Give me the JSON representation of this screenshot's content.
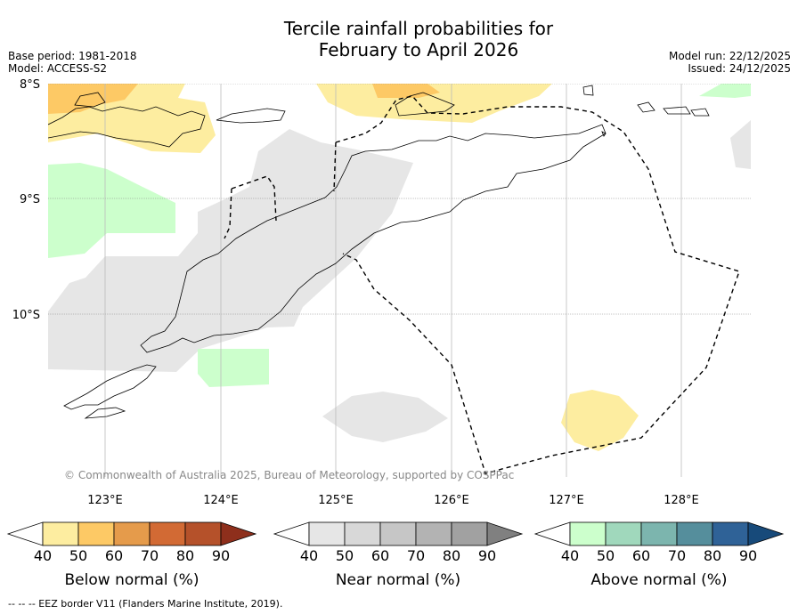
{
  "title_line1": "Tercile rainfall probabilities for",
  "title_line2": "February to April 2026",
  "base_period": "Base period: 1981-2018",
  "model": "Model: ACCESS-S2",
  "model_run": "Model run: 22/12/2025",
  "issued": "Issued: 24/12/2025",
  "lat_labels": [
    "8°S",
    "9°S",
    "10°S"
  ],
  "lon_labels": [
    "123°E",
    "124°E",
    "125°E",
    "126°E",
    "127°E",
    "128°E"
  ],
  "copyright": "© Commonwealth of Australia 2025, Bureau of Meteorology, supported by COSPPac",
  "colorbars": [
    {
      "label": "Below normal (%)",
      "ticks": [
        "40",
        "50",
        "60",
        "70",
        "80",
        "90"
      ],
      "colors": [
        "#ffffff",
        "#fdeda0",
        "#fdc965",
        "#e59b4b",
        "#d26a34",
        "#b5512a",
        "#8e2f1c"
      ]
    },
    {
      "label": "Near normal (%)",
      "ticks": [
        "40",
        "50",
        "60",
        "70",
        "80",
        "90"
      ],
      "colors": [
        "#ffffff",
        "#e6e6e6",
        "#d8d8d8",
        "#c6c6c6",
        "#b3b3b3",
        "#a1a1a1",
        "#808080"
      ]
    },
    {
      "label": "Above normal (%)",
      "ticks": [
        "40",
        "50",
        "60",
        "70",
        "80",
        "90"
      ],
      "colors": [
        "#ffffff",
        "#ccffcc",
        "#a0d8bc",
        "#7cb5ae",
        "#558e9c",
        "#2f6297",
        "#174a7a"
      ]
    }
  ],
  "footnote": "--  --  -- EEZ border V11 (Flanders Marine Institute, 2019).",
  "map_colors": {
    "below": "#fdeda0",
    "below2": "#fdc965",
    "near": "#e6e6e6",
    "above": "#ccffcc"
  }
}
